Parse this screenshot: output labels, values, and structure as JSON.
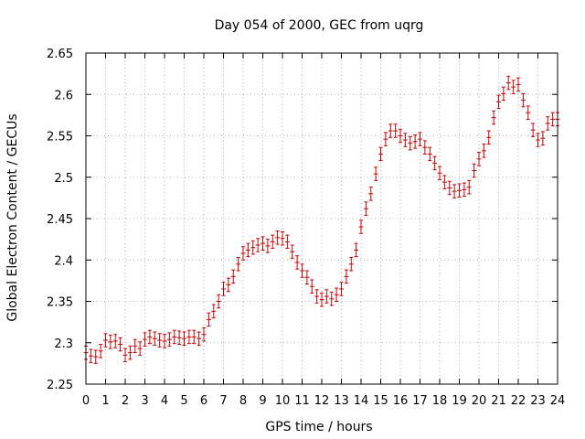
{
  "chart_data": {
    "type": "scatter",
    "title": "Day 054 of 2000, GEC from uqrg",
    "xlabel": "GPS time / hours",
    "ylabel": "Global Electron Content / GECUs",
    "xlim": [
      0,
      24
    ],
    "ylim": [
      2.25,
      2.65
    ],
    "xticks": [
      "0",
      "1",
      "2",
      "3",
      "4",
      "5",
      "6",
      "7",
      "8",
      "9",
      "10",
      "11",
      "12",
      "13",
      "14",
      "15",
      "16",
      "17",
      "18",
      "19",
      "20",
      "21",
      "22",
      "23",
      "24"
    ],
    "yticks": [
      "2.25",
      "2.3",
      "2.35",
      "2.4",
      "2.45",
      "2.5",
      "2.55",
      "2.6",
      "2.65"
    ],
    "grid": true,
    "error_bars": true,
    "series_color": "#cc0000",
    "series": [
      {
        "name": "",
        "error": 0.008,
        "x": [
          0.0,
          0.25,
          0.5,
          0.75,
          1.0,
          1.25,
          1.5,
          1.75,
          2.0,
          2.25,
          2.5,
          2.75,
          3.0,
          3.25,
          3.5,
          3.75,
          4.0,
          4.25,
          4.5,
          4.75,
          5.0,
          5.25,
          5.5,
          5.75,
          6.0,
          6.25,
          6.5,
          6.75,
          7.0,
          7.25,
          7.5,
          7.75,
          8.0,
          8.25,
          8.5,
          8.75,
          9.0,
          9.25,
          9.5,
          9.75,
          10.0,
          10.25,
          10.5,
          10.75,
          11.0,
          11.25,
          11.5,
          11.75,
          12.0,
          12.25,
          12.5,
          12.75,
          13.0,
          13.25,
          13.5,
          13.75,
          14.0,
          14.25,
          14.5,
          14.75,
          15.0,
          15.25,
          15.5,
          15.75,
          16.0,
          16.25,
          16.5,
          16.75,
          17.0,
          17.25,
          17.5,
          17.75,
          18.0,
          18.25,
          18.5,
          18.75,
          19.0,
          19.25,
          19.5,
          19.75,
          20.0,
          20.25,
          20.5,
          20.75,
          21.0,
          21.25,
          21.5,
          21.75,
          22.0,
          22.25,
          22.5,
          22.75,
          23.0,
          23.25,
          23.5,
          23.75,
          24.0
        ],
        "y": [
          2.288,
          2.284,
          2.283,
          2.29,
          2.303,
          2.301,
          2.302,
          2.298,
          2.285,
          2.288,
          2.296,
          2.293,
          2.304,
          2.307,
          2.305,
          2.303,
          2.302,
          2.304,
          2.307,
          2.306,
          2.305,
          2.307,
          2.307,
          2.305,
          2.31,
          2.328,
          2.338,
          2.35,
          2.365,
          2.37,
          2.38,
          2.395,
          2.408,
          2.412,
          2.415,
          2.418,
          2.42,
          2.417,
          2.422,
          2.427,
          2.426,
          2.422,
          2.41,
          2.397,
          2.387,
          2.379,
          2.368,
          2.356,
          2.352,
          2.356,
          2.353,
          2.358,
          2.365,
          2.38,
          2.395,
          2.412,
          2.44,
          2.462,
          2.48,
          2.504,
          2.528,
          2.546,
          2.556,
          2.556,
          2.55,
          2.545,
          2.541,
          2.543,
          2.546,
          2.536,
          2.528,
          2.517,
          2.505,
          2.494,
          2.487,
          2.483,
          2.484,
          2.485,
          2.488,
          2.508,
          2.522,
          2.532,
          2.548,
          2.572,
          2.591,
          2.601,
          2.614,
          2.609,
          2.612,
          2.593,
          2.578,
          2.557,
          2.545,
          2.547,
          2.565,
          2.57,
          2.57
        ]
      }
    ]
  }
}
